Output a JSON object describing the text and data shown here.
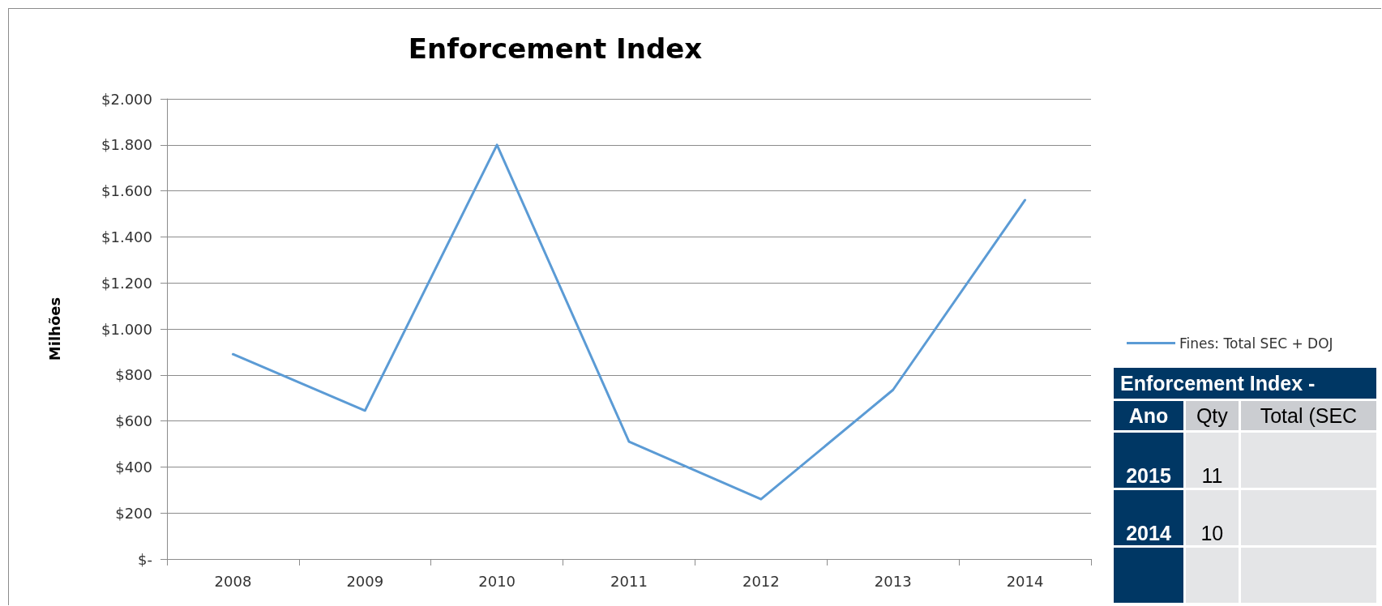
{
  "chart_data": [
    {
      "type": "line",
      "title": "Enforcement Index",
      "ylabel": "Milhões",
      "categories": [
        "2008",
        "2009",
        "2010",
        "2011",
        "2012",
        "2013",
        "2014"
      ],
      "series": [
        {
          "name": "Fines: Total SEC + DOJ",
          "color": "#5b9bd5",
          "values": [
            890,
            645,
            1800,
            510,
            260,
            735,
            1560
          ]
        }
      ],
      "ylim": [
        0,
        2000
      ],
      "yticks": [
        {
          "value": 0,
          "label": "$-"
        },
        {
          "value": 200,
          "label": "$200"
        },
        {
          "value": 400,
          "label": "$400"
        },
        {
          "value": 600,
          "label": "$600"
        },
        {
          "value": 800,
          "label": "$800"
        },
        {
          "value": 1000,
          "label": "$1.000"
        },
        {
          "value": 1200,
          "label": "$1.200"
        },
        {
          "value": 1400,
          "label": "$1.400"
        },
        {
          "value": 1600,
          "label": "$1.600"
        },
        {
          "value": 1800,
          "label": "$1.800"
        },
        {
          "value": 2000,
          "label": "$2.000"
        }
      ],
      "grid": "y",
      "legend": "right",
      "marker": "none",
      "line_style": "solid"
    },
    {
      "type": "other",
      "title": "Enforcement Index -",
      "categories": [
        "Ano",
        "Qty",
        "Total (SEC"
      ],
      "cell_labels": [
        [
          "2015",
          "11",
          null
        ],
        [
          "2014",
          "10",
          null
        ],
        [
          null,
          null,
          null
        ]
      ]
    }
  ]
}
